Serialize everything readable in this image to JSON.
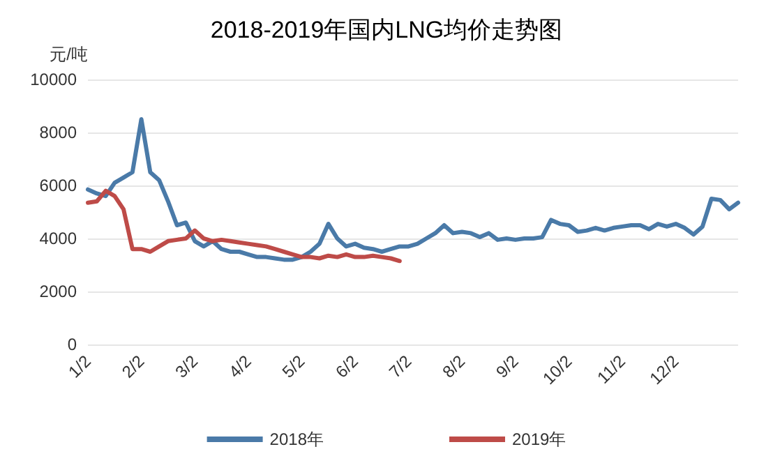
{
  "chart_data": {
    "type": "line",
    "title": "2018-2019年国内LNG均价走势图",
    "ylabel": "元/吨",
    "categories": [
      "1/2",
      null,
      null,
      null,
      null,
      null,
      "2/2",
      null,
      null,
      null,
      null,
      null,
      "3/2",
      null,
      null,
      null,
      null,
      null,
      "4/2",
      null,
      null,
      null,
      null,
      null,
      "5/2",
      null,
      null,
      null,
      null,
      null,
      "6/2",
      null,
      null,
      null,
      null,
      null,
      "7/2",
      null,
      null,
      null,
      null,
      null,
      "8/2",
      null,
      null,
      null,
      null,
      null,
      "9/2",
      null,
      null,
      null,
      null,
      null,
      "10/2",
      null,
      null,
      null,
      null,
      null,
      "11/2",
      null,
      null,
      null,
      null,
      null,
      "12/2",
      null,
      null,
      null,
      null,
      null,
      null,
      null
    ],
    "series": [
      {
        "name": "2018年",
        "color": "#4a7aa8",
        "values": [
          5850,
          5700,
          5600,
          6100,
          6300,
          6500,
          8500,
          6500,
          6200,
          5400,
          4500,
          4600,
          3900,
          3700,
          3900,
          3600,
          3500,
          3500,
          3400,
          3300,
          3300,
          3250,
          3200,
          3200,
          3300,
          3500,
          3800,
          4550,
          4000,
          3700,
          3800,
          3650,
          3600,
          3500,
          3600,
          3700,
          3700,
          3800,
          4000,
          4200,
          4500,
          4200,
          4250,
          4200,
          4050,
          4200,
          3950,
          4000,
          3950,
          4000,
          4000,
          4050,
          4700,
          4550,
          4500,
          4250,
          4300,
          4400,
          4300,
          4400,
          4450,
          4500,
          4500,
          4350,
          4550,
          4450,
          4550,
          4400,
          4150,
          4450,
          5500,
          5450,
          5100,
          5350
        ]
      },
      {
        "name": "2019年",
        "color": "#be4b48",
        "values": [
          5350,
          5400,
          5800,
          5600,
          5100,
          3600,
          3600,
          3500,
          3700,
          3900,
          3950,
          4000,
          4300,
          4000,
          3900,
          3950,
          3900,
          3850,
          3800,
          3750,
          3700,
          3600,
          3500,
          3400,
          3300,
          3300,
          3250,
          3350,
          3300,
          3400,
          3300,
          3300,
          3350,
          3300,
          3250,
          3150,
          null,
          null,
          null,
          null,
          null,
          null,
          null,
          null,
          null,
          null,
          null,
          null,
          null,
          null,
          null,
          null,
          null,
          null,
          null,
          null,
          null,
          null,
          null,
          null,
          null,
          null,
          null,
          null,
          null,
          null,
          null,
          null,
          null,
          null,
          null,
          null,
          null,
          null
        ]
      }
    ],
    "ylim": [
      0,
      10000
    ],
    "yticks": [
      0,
      2000,
      4000,
      6000,
      8000,
      10000
    ],
    "grid": "y",
    "legend": "bottom",
    "marker": "none",
    "line_style": "solid"
  }
}
